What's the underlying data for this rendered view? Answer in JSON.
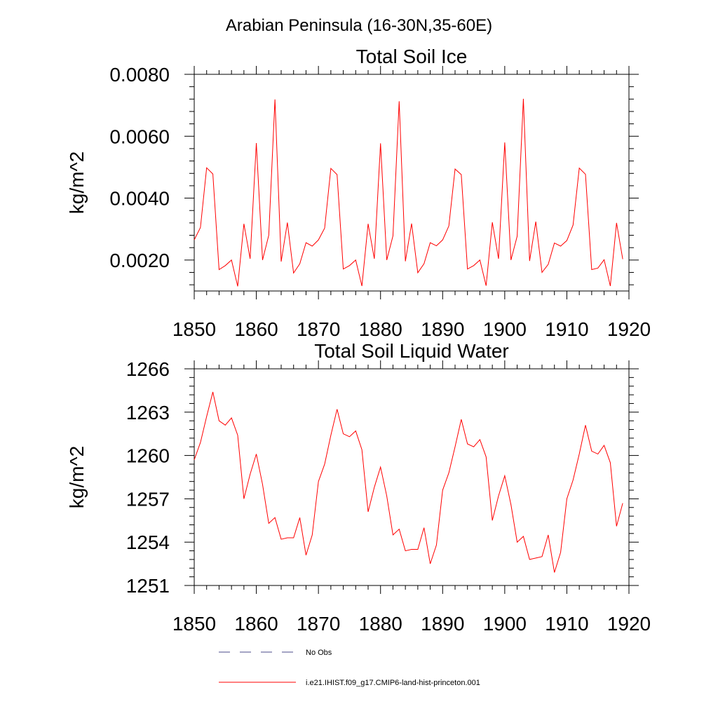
{
  "figure": {
    "main_title": "Arabian Peninsula (16-30N,35-60E)",
    "legend": [
      {
        "label": "No Obs",
        "color": "#4a4a8a",
        "style": "dashed"
      },
      {
        "label": "i.e21.IHIST.f09_g17.CMIP6-land-hist-princeton.001",
        "color": "#ff0000",
        "style": "solid"
      }
    ]
  },
  "chart_data": [
    {
      "type": "line",
      "title": "Total Soil Ice",
      "xlabel": "",
      "ylabel": "kg/m^2",
      "xlim": [
        1850,
        1920
      ],
      "ylim": [
        0.001,
        0.008
      ],
      "xticks": [
        1850,
        1860,
        1870,
        1880,
        1890,
        1900,
        1910,
        1920
      ],
      "xtick_labels": [
        "1850",
        "1860",
        "1870",
        "1880",
        "1890",
        "1900",
        "1910",
        "1920"
      ],
      "yticks": [
        0.002,
        0.004,
        0.006,
        0.008
      ],
      "ytick_labels": [
        "0.0020",
        "0.0040",
        "0.0060",
        "0.0080"
      ],
      "grid": false,
      "series": [
        {
          "name": "i.e21.IHIST.f09_g17.CMIP6-land-hist-princeton.001",
          "color": "#ff0000",
          "x": [
            1850,
            1851,
            1852,
            1853,
            1854,
            1855,
            1856,
            1857,
            1858,
            1859,
            1860,
            1861,
            1862,
            1863,
            1864,
            1865,
            1866,
            1867,
            1868,
            1869,
            1870,
            1871,
            1872,
            1873,
            1874,
            1875,
            1876,
            1877,
            1878,
            1879,
            1880,
            1881,
            1882,
            1883,
            1884,
            1885,
            1886,
            1887,
            1888,
            1889,
            1890,
            1891,
            1892,
            1893,
            1894,
            1895,
            1896,
            1897,
            1898,
            1899,
            1900,
            1901,
            1902,
            1903,
            1904,
            1905,
            1906,
            1907,
            1908,
            1909,
            1910,
            1911,
            1912,
            1913,
            1914,
            1915,
            1916,
            1917,
            1918,
            1919
          ],
          "values": [
            0.00265,
            0.00305,
            0.00498,
            0.00478,
            0.00169,
            0.00182,
            0.002,
            0.00115,
            0.00317,
            0.00204,
            0.00578,
            0.002,
            0.0028,
            0.00719,
            0.00195,
            0.00321,
            0.00158,
            0.00188,
            0.00256,
            0.00245,
            0.00265,
            0.00303,
            0.00496,
            0.00476,
            0.00171,
            0.00182,
            0.002,
            0.00116,
            0.00317,
            0.00204,
            0.00577,
            0.002,
            0.00278,
            0.00713,
            0.00196,
            0.00318,
            0.00159,
            0.00188,
            0.00256,
            0.00246,
            0.00265,
            0.0031,
            0.00494,
            0.00476,
            0.00171,
            0.00182,
            0.002,
            0.00117,
            0.00322,
            0.00204,
            0.0058,
            0.002,
            0.00277,
            0.00721,
            0.00197,
            0.00324,
            0.0016,
            0.00186,
            0.00255,
            0.00245,
            0.00263,
            0.00313,
            0.00497,
            0.00477,
            0.00169,
            0.00174,
            0.00201,
            0.00116,
            0.0032,
            0.00203
          ]
        }
      ]
    },
    {
      "type": "line",
      "title": "Total Soil Liquid Water",
      "xlabel": "",
      "ylabel": "kg/m^2",
      "xlim": [
        1850,
        1920
      ],
      "ylim": [
        1251,
        1266
      ],
      "xticks": [
        1850,
        1860,
        1870,
        1880,
        1890,
        1900,
        1910,
        1920
      ],
      "xtick_labels": [
        "1850",
        "1860",
        "1870",
        "1880",
        "1890",
        "1900",
        "1910",
        "1920"
      ],
      "yticks": [
        1251,
        1254,
        1257,
        1260,
        1263,
        1266
      ],
      "ytick_labels": [
        "1251",
        "1254",
        "1257",
        "1260",
        "1263",
        "1266"
      ],
      "grid": false,
      "series": [
        {
          "name": "i.e21.IHIST.f09_g17.CMIP6-land-hist-princeton.001",
          "color": "#ff0000",
          "x": [
            1850,
            1851,
            1852,
            1853,
            1854,
            1855,
            1856,
            1857,
            1858,
            1859,
            1860,
            1861,
            1862,
            1863,
            1864,
            1865,
            1866,
            1867,
            1868,
            1869,
            1870,
            1871,
            1872,
            1873,
            1874,
            1875,
            1876,
            1877,
            1878,
            1879,
            1880,
            1881,
            1882,
            1883,
            1884,
            1885,
            1886,
            1887,
            1888,
            1889,
            1890,
            1891,
            1892,
            1893,
            1894,
            1895,
            1896,
            1897,
            1898,
            1899,
            1900,
            1901,
            1902,
            1903,
            1904,
            1905,
            1906,
            1907,
            1908,
            1909,
            1910,
            1911,
            1912,
            1913,
            1914,
            1915,
            1916,
            1917,
            1918,
            1919
          ],
          "values": [
            1259.7,
            1260.9,
            1262.7,
            1264.4,
            1262.4,
            1262.1,
            1262.6,
            1261.4,
            1257.0,
            1258.7,
            1260.1,
            1258.0,
            1255.3,
            1255.7,
            1254.2,
            1254.3,
            1254.3,
            1255.7,
            1253.1,
            1254.5,
            1258.2,
            1259.4,
            1261.4,
            1263.2,
            1261.5,
            1261.3,
            1261.7,
            1260.4,
            1256.1,
            1257.8,
            1259.2,
            1257.2,
            1254.5,
            1254.9,
            1253.4,
            1253.5,
            1253.5,
            1255.0,
            1252.5,
            1253.8,
            1257.6,
            1258.8,
            1260.6,
            1262.5,
            1260.8,
            1260.6,
            1261.1,
            1259.9,
            1255.5,
            1257.2,
            1258.6,
            1256.6,
            1254.0,
            1254.4,
            1252.8,
            1252.9,
            1253.0,
            1254.5,
            1251.9,
            1253.3,
            1257.0,
            1258.3,
            1260.1,
            1262.1,
            1260.3,
            1260.1,
            1260.7,
            1259.5,
            1255.1,
            1256.7
          ]
        }
      ]
    }
  ]
}
